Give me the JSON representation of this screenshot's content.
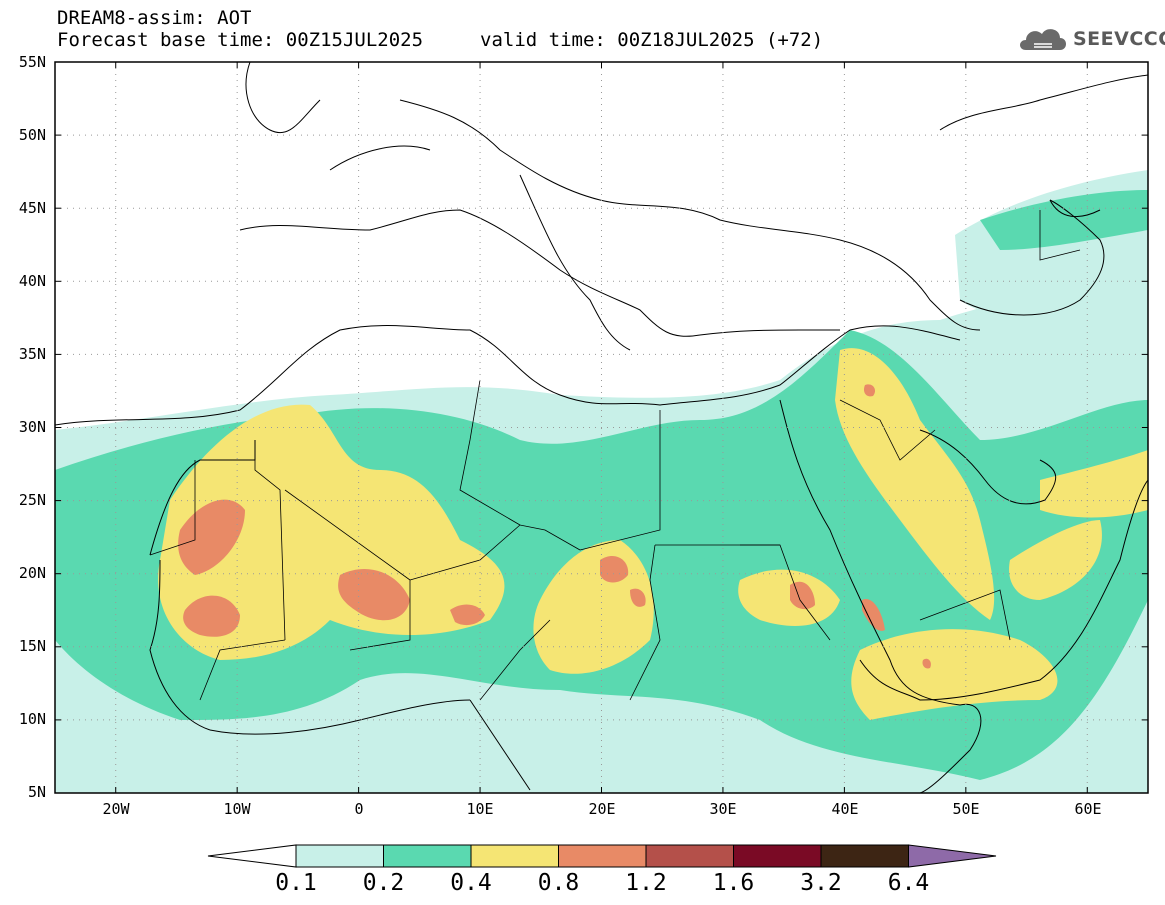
{
  "header": {
    "line1": "DREAM8-assim: AOT",
    "line2": "Forecast base time: 00Z15JUL2025",
    "valid": "valid time: 00Z18JUL2025 (+72)"
  },
  "logo": {
    "text": "SEEVCCC",
    "icon": "cloud-icon"
  },
  "map": {
    "lat_labels": [
      "55N",
      "50N",
      "45N",
      "40N",
      "35N",
      "30N",
      "25N",
      "20N",
      "15N",
      "10N",
      "5N"
    ],
    "lon_labels": [
      "20W",
      "10W",
      "0",
      "10E",
      "20E",
      "30E",
      "40E",
      "50E",
      "60E"
    ],
    "lat_range": [
      5,
      55
    ],
    "lon_range": [
      -25,
      65
    ],
    "grid": "dotted"
  },
  "colorbar": {
    "levels": [
      "0.1",
      "0.2",
      "0.4",
      "0.8",
      "1.2",
      "1.6",
      "3.2",
      "6.4"
    ],
    "colors": [
      "#c8f0e8",
      "#5ad9b0",
      "#f5e574",
      "#e88a66",
      "#b4504a",
      "#7a0a25",
      "#3d2514",
      "#8e6aa8"
    ],
    "under_color": "#ffffff",
    "over_color": "#8e6aa8"
  }
}
